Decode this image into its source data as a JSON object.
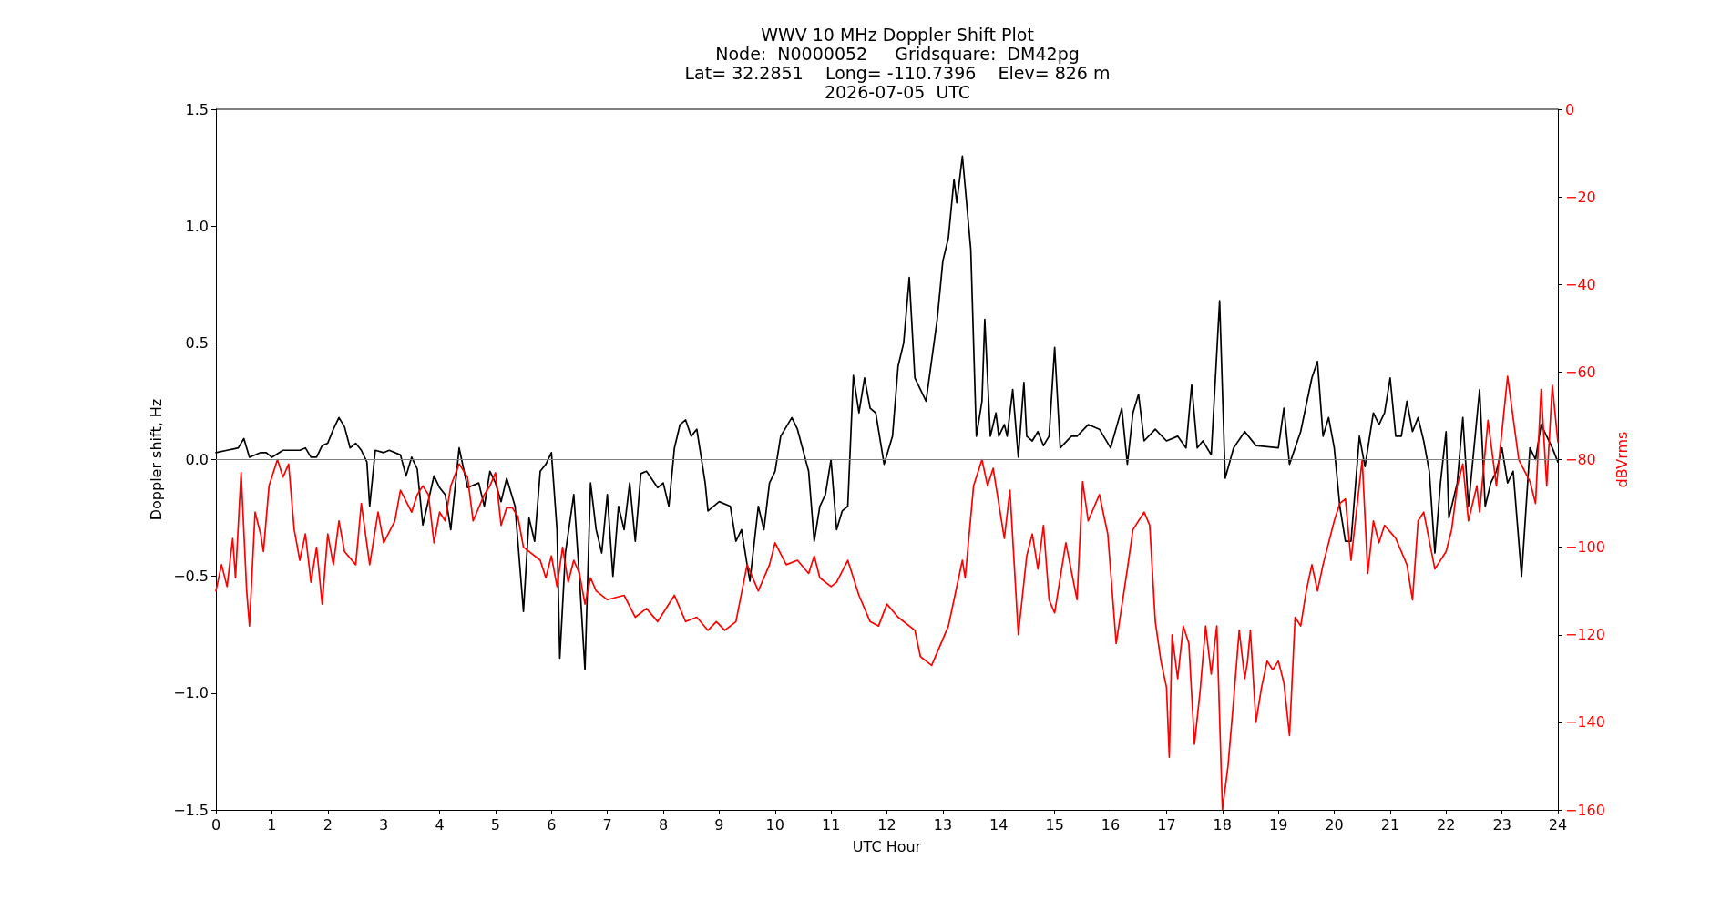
{
  "chart_data": {
    "type": "line",
    "title": "WWV 10 MHz Doppler Shift Plot\nNode:  N0000052     Gridsquare:  DM42pg\nLat= 32.2851    Long= -110.7396    Elev= 826 m\n2026-07-05  UTC",
    "xlabel": "UTC Hour",
    "ylabel": "Doppler shift, Hz",
    "y2label": "dBVrms",
    "xlim": [
      0,
      24
    ],
    "xticks": [
      0,
      1,
      2,
      3,
      4,
      5,
      6,
      7,
      8,
      9,
      10,
      11,
      12,
      13,
      14,
      15,
      16,
      17,
      18,
      19,
      20,
      21,
      22,
      23,
      24
    ],
    "ylim": [
      -1.5,
      1.5
    ],
    "yticks": [
      {
        "value": -1.5,
        "label": "−1.5"
      },
      {
        "value": -1,
        "label": "−1.0"
      },
      {
        "value": -0.5,
        "label": "−0.5"
      },
      {
        "value": 0,
        "label": "0.0"
      },
      {
        "value": 0.5,
        "label": "0.5"
      },
      {
        "value": 1,
        "label": "1.0"
      },
      {
        "value": 1.5,
        "label": "1.5"
      }
    ],
    "y2lim": [
      -160,
      0
    ],
    "y2ticks": [
      {
        "value": -160,
        "label": "−160"
      },
      {
        "value": -140,
        "label": "−140"
      },
      {
        "value": -120,
        "label": "−120"
      },
      {
        "value": -100,
        "label": "−100"
      },
      {
        "value": -80,
        "label": "−80"
      },
      {
        "value": -60,
        "label": "−60"
      },
      {
        "value": -40,
        "label": "−40"
      },
      {
        "value": -20,
        "label": "−20"
      },
      0
    ],
    "grid": false,
    "marker": "none",
    "line_style": "solid",
    "ref_lines": [
      {
        "axis": "y",
        "value": 0,
        "color": "#808080"
      }
    ],
    "series": [
      {
        "color": "#000000",
        "x": [
          0,
          0.2,
          0.4,
          0.5,
          0.6,
          0.8,
          0.9,
          1,
          1.2,
          1.5,
          1.6,
          1.7,
          1.8,
          1.9,
          2,
          2.1,
          2.2,
          2.3,
          2.4,
          2.5,
          2.6,
          2.7,
          2.75,
          2.85,
          3,
          3.1,
          3.3,
          3.4,
          3.5,
          3.6,
          3.7,
          3.9,
          4,
          4.1,
          4.2,
          4.35,
          4.5,
          4.7,
          4.8,
          4.9,
          5,
          5.1,
          5.2,
          5.35,
          5.5,
          5.6,
          5.7,
          5.8,
          5.9,
          6,
          6.1,
          6.15,
          6.25,
          6.4,
          6.5,
          6.6,
          6.7,
          6.8,
          6.9,
          7,
          7.1,
          7.2,
          7.3,
          7.4,
          7.5,
          7.6,
          7.7,
          7.9,
          8,
          8.1,
          8.2,
          8.3,
          8.4,
          8.5,
          8.6,
          8.75,
          8.8,
          9,
          9.2,
          9.3,
          9.4,
          9.5,
          9.55,
          9.7,
          9.8,
          9.9,
          10,
          10.1,
          10.3,
          10.4,
          10.6,
          10.7,
          10.8,
          10.9,
          11,
          11.1,
          11.2,
          11.3,
          11.4,
          11.5,
          11.6,
          11.7,
          11.8,
          11.95,
          12.1,
          12.2,
          12.3,
          12.4,
          12.5,
          12.7,
          12.9,
          13,
          13.1,
          13.2,
          13.25,
          13.35,
          13.5,
          13.6,
          13.7,
          13.75,
          13.85,
          13.95,
          14,
          14.1,
          14.15,
          14.25,
          14.35,
          14.45,
          14.5,
          14.6,
          14.7,
          14.8,
          14.9,
          15,
          15.1,
          15.3,
          15.4,
          15.6,
          15.8,
          16,
          16.2,
          16.3,
          16.4,
          16.5,
          16.6,
          16.8,
          17,
          17.2,
          17.35,
          17.45,
          17.55,
          17.65,
          17.8,
          17.95,
          18.05,
          18.2,
          18.4,
          18.6,
          19,
          19.1,
          19.2,
          19.4,
          19.6,
          19.7,
          19.8,
          19.9,
          20,
          20.1,
          20.2,
          20.3,
          20.45,
          20.55,
          20.7,
          20.8,
          20.9,
          21,
          21.1,
          21.2,
          21.3,
          21.4,
          21.5,
          21.6,
          21.7,
          21.8,
          21.9,
          22,
          22.05,
          22.2,
          22.3,
          22.4,
          22.6,
          22.7,
          22.8,
          22.9,
          23,
          23.1,
          23.2,
          23.35,
          23.5,
          23.6,
          23.7,
          23.8,
          23.9,
          24
        ],
        "values": [
          0.03,
          0.04,
          0.05,
          0.09,
          0.01,
          0.03,
          0.03,
          0.01,
          0.04,
          0.04,
          0.05,
          0.01,
          0.01,
          0.06,
          0.07,
          0.13,
          0.18,
          0.14,
          0.05,
          0.07,
          0.04,
          -0.01,
          -0.2,
          0.04,
          0.03,
          0.04,
          0.02,
          -0.07,
          0.01,
          -0.04,
          -0.28,
          -0.07,
          -0.12,
          -0.15,
          -0.3,
          0.05,
          -0.12,
          -0.1,
          -0.2,
          -0.05,
          -0.1,
          -0.18,
          -0.08,
          -0.2,
          -0.65,
          -0.25,
          -0.35,
          -0.05,
          -0.02,
          0.03,
          -0.3,
          -0.85,
          -0.4,
          -0.15,
          -0.5,
          -0.9,
          -0.1,
          -0.3,
          -0.4,
          -0.15,
          -0.5,
          -0.2,
          -0.3,
          -0.1,
          -0.35,
          -0.06,
          -0.05,
          -0.12,
          -0.1,
          -0.2,
          0.05,
          0.15,
          0.17,
          0.1,
          0.13,
          -0.1,
          -0.22,
          -0.18,
          -0.2,
          -0.35,
          -0.3,
          -0.45,
          -0.52,
          -0.2,
          -0.3,
          -0.1,
          -0.05,
          0.1,
          0.18,
          0.13,
          -0.05,
          -0.35,
          -0.2,
          -0.15,
          0,
          -0.3,
          -0.22,
          -0.2,
          0.36,
          0.2,
          0.35,
          0.22,
          0.2,
          -0.02,
          0.1,
          0.4,
          0.5,
          0.78,
          0.35,
          0.25,
          0.6,
          0.85,
          0.95,
          1.2,
          1.1,
          1.3,
          0.9,
          0.1,
          0.25,
          0.6,
          0.1,
          0.2,
          0.1,
          0.15,
          0.1,
          0.3,
          0.01,
          0.33,
          0.1,
          0.08,
          0.12,
          0.06,
          0.1,
          0.48,
          0.05,
          0.1,
          0.1,
          0.15,
          0.13,
          0.05,
          0.22,
          -0.02,
          0.2,
          0.28,
          0.08,
          0.13,
          0.08,
          0.1,
          0.05,
          0.32,
          0.05,
          0.08,
          0.02,
          0.68,
          -0.08,
          0.05,
          0.12,
          0.06,
          0.05,
          0.22,
          -0.02,
          0.12,
          0.35,
          0.42,
          0.1,
          0.18,
          0.05,
          -0.2,
          -0.35,
          -0.35,
          0.1,
          -0.03,
          0.2,
          0.15,
          0.2,
          0.35,
          0.1,
          0.1,
          0.25,
          0.12,
          0.18,
          0.08,
          -0.05,
          -0.4,
          -0.1,
          0.12,
          -0.25,
          -0.1,
          0.18,
          -0.2,
          0.3,
          -0.2,
          -0.1,
          -0.05,
          0.05,
          -0.1,
          -0.05,
          -0.5,
          0.05,
          0,
          0.15,
          0.1,
          0.05,
          -0.01
        ]
      },
      {
        "color": "#ff0000",
        "axis": "y2",
        "x": [
          0,
          0.1,
          0.2,
          0.3,
          0.35,
          0.45,
          0.55,
          0.6,
          0.7,
          0.8,
          0.85,
          0.95,
          1.1,
          1.2,
          1.3,
          1.4,
          1.5,
          1.6,
          1.7,
          1.8,
          1.9,
          2,
          2.1,
          2.2,
          2.3,
          2.5,
          2.6,
          2.75,
          2.9,
          3,
          3.2,
          3.3,
          3.5,
          3.6,
          3.7,
          3.8,
          3.9,
          4,
          4.1,
          4.2,
          4.35,
          4.5,
          4.6,
          4.8,
          4.9,
          5,
          5.1,
          5.2,
          5.3,
          5.4,
          5.5,
          5.6,
          5.8,
          5.9,
          6,
          6.1,
          6.2,
          6.3,
          6.4,
          6.5,
          6.6,
          6.7,
          6.8,
          7,
          7.3,
          7.5,
          7.7,
          7.9,
          8.2,
          8.4,
          8.6,
          8.8,
          8.95,
          9.1,
          9.3,
          9.5,
          9.7,
          9.9,
          10,
          10.2,
          10.4,
          10.6,
          10.7,
          10.8,
          11,
          11.1,
          11.3,
          11.5,
          11.7,
          11.85,
          12,
          12.2,
          12.5,
          12.6,
          12.8,
          13,
          13.1,
          13.2,
          13.35,
          13.4,
          13.55,
          13.7,
          13.8,
          13.9,
          14,
          14.1,
          14.2,
          14.35,
          14.5,
          14.6,
          14.7,
          14.8,
          14.9,
          15,
          15.2,
          15.4,
          15.5,
          15.6,
          15.8,
          15.95,
          16.1,
          16.3,
          16.4,
          16.6,
          16.7,
          16.8,
          16.9,
          17,
          17.05,
          17.1,
          17.2,
          17.3,
          17.4,
          17.5,
          17.6,
          17.7,
          17.8,
          17.9,
          18,
          18.1,
          18.2,
          18.3,
          18.4,
          18.45,
          18.5,
          18.6,
          18.7,
          18.8,
          18.9,
          19,
          19.1,
          19.2,
          19.3,
          19.4,
          19.5,
          19.6,
          19.7,
          19.8,
          20,
          20.1,
          20.2,
          20.3,
          20.5,
          20.6,
          20.7,
          20.8,
          20.9,
          21.1,
          21.3,
          21.4,
          21.5,
          21.6,
          21.8,
          22,
          22.1,
          22.2,
          22.3,
          22.4,
          22.55,
          22.6,
          22.75,
          22.9,
          23.1,
          23.3,
          23.5,
          23.6,
          23.7,
          23.8,
          23.9,
          24
        ],
        "values": [
          -110,
          -104,
          -109,
          -98,
          -107,
          -83,
          -110,
          -118,
          -92,
          -97,
          -101,
          -86,
          -80,
          -84,
          -81,
          -96,
          -103,
          -97,
          -108,
          -100,
          -113,
          -97,
          -104,
          -94,
          -101,
          -104,
          -90,
          -104,
          -92,
          -99,
          -94,
          -87,
          -92,
          -88,
          -86,
          -88,
          -99,
          -92,
          -94,
          -86,
          -81,
          -84,
          -94,
          -88,
          -86,
          -83,
          -95,
          -91,
          -91,
          -93,
          -100,
          -101,
          -103,
          -107,
          -102,
          -109,
          -100,
          -108,
          -103,
          -106,
          -113,
          -107,
          -110,
          -112,
          -111,
          -116,
          -114,
          -117,
          -111,
          -117,
          -116,
          -119,
          -117,
          -119,
          -117,
          -104,
          -110,
          -104,
          -99,
          -104,
          -103,
          -106,
          -102,
          -107,
          -109,
          -108,
          -103,
          -111,
          -117,
          -118,
          -113,
          -116,
          -119,
          -125,
          -127,
          -121,
          -118,
          -112,
          -103,
          -107,
          -86,
          -80,
          -86,
          -82,
          -90,
          -98,
          -87,
          -120,
          -102,
          -97,
          -105,
          -95,
          -112,
          -115,
          -99,
          -112,
          -85,
          -94,
          -88,
          -97,
          -122,
          -105,
          -96,
          -92,
          -95,
          -117,
          -126,
          -132,
          -148,
          -120,
          -130,
          -118,
          -122,
          -145,
          -133,
          -118,
          -129,
          -118,
          -160,
          -150,
          -135,
          -119,
          -130,
          -126,
          -119,
          -140,
          -132,
          -126,
          -128,
          -126,
          -131,
          -143,
          -116,
          -118,
          -110,
          -104,
          -110,
          -104,
          -94,
          -90,
          -89,
          -103,
          -80,
          -106,
          -94,
          -99,
          -95,
          -98,
          -104,
          -112,
          -94,
          -92,
          -105,
          -101,
          -96,
          -86,
          -81,
          -94,
          -86,
          -92,
          -71,
          -86,
          -61,
          -80,
          -85,
          -90,
          -64,
          -86,
          -63,
          -76
        ]
      }
    ]
  }
}
